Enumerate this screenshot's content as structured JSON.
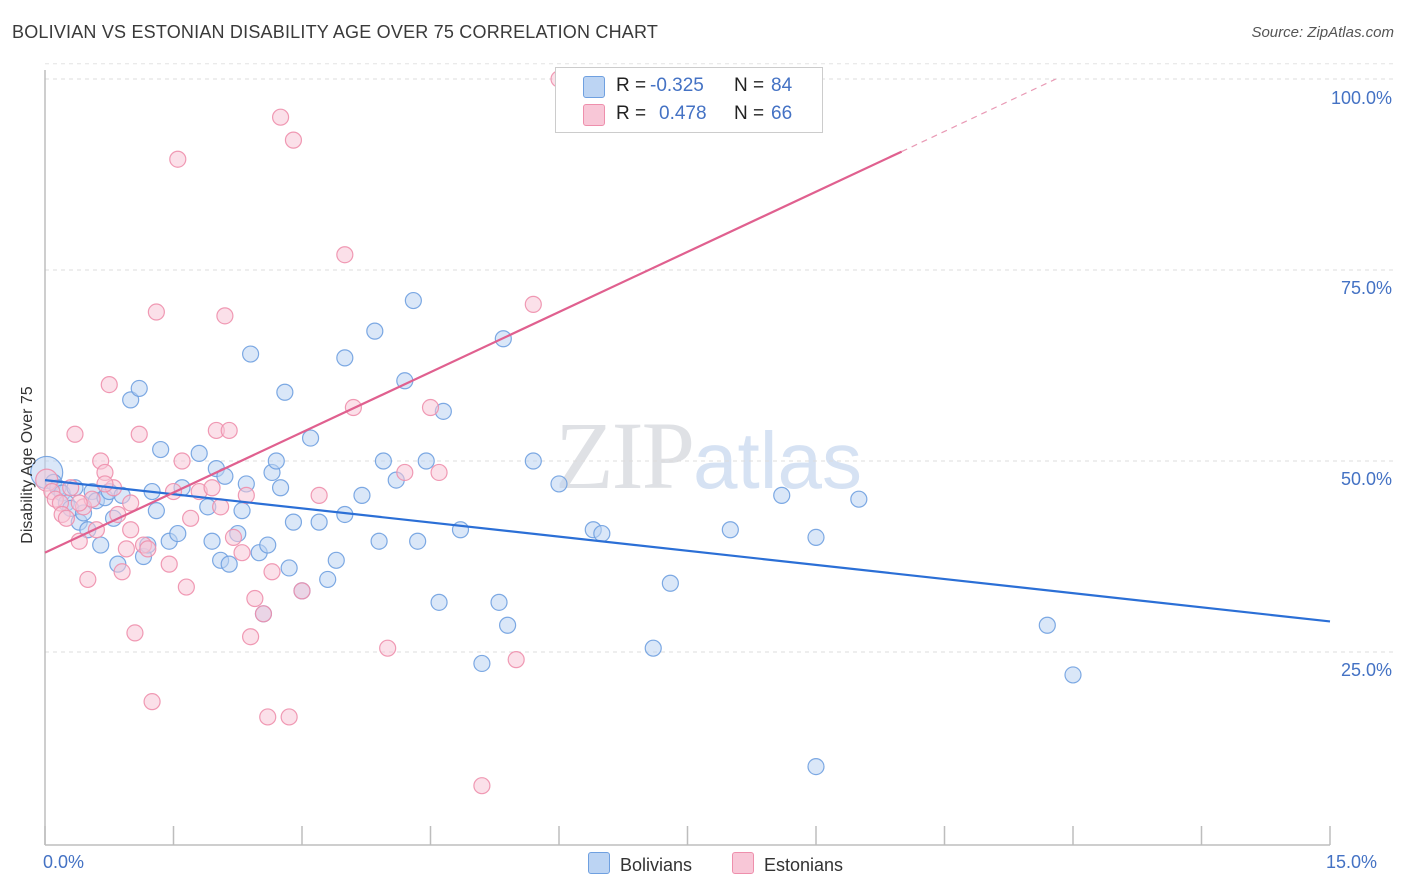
{
  "title": "BOLIVIAN VS ESTONIAN DISABILITY AGE OVER 75 CORRELATION CHART",
  "source": "Source: ZipAtlas.com",
  "watermark": {
    "part1": "ZIP",
    "part2": "atlas"
  },
  "legend": {
    "rows": [
      {
        "r_label": "R =",
        "r_value": "-0.325",
        "n_label": "N =",
        "n_value": "84",
        "color": "#6fa0e0",
        "fill": "#bcd4f3"
      },
      {
        "r_label": "R =",
        "r_value": "0.478",
        "n_label": "N =",
        "n_value": "66",
        "color": "#ee8fac",
        "fill": "#f8c7d7"
      }
    ]
  },
  "bottom_legend": [
    {
      "label": "Bolivians",
      "color": "#bcd4f3",
      "border": "#6fa0e0"
    },
    {
      "label": "Estonians",
      "color": "#f8c7d7",
      "border": "#ee8fac"
    }
  ],
  "chart_data": {
    "type": "scatter",
    "title": "BOLIVIAN VS ESTONIAN DISABILITY AGE OVER 75 CORRELATION CHART",
    "xlabel": "",
    "ylabel": "Disability Age Over 75",
    "xlim": [
      0,
      15
    ],
    "ylim": [
      0,
      102
    ],
    "x_tick_labels": [
      "0.0%",
      "15.0%"
    ],
    "y_ticks": [
      25,
      50,
      75,
      100
    ],
    "y_tick_labels": [
      "25.0%",
      "50.0%",
      "75.0%",
      "100.0%"
    ],
    "grid": true,
    "legend_position": "top-center",
    "series": [
      {
        "name": "Bolivians",
        "color": "#6fa0e0",
        "fill": "#bcd4f3",
        "trend": {
          "x0": 0.0,
          "y0": 47.5,
          "x1": 15.0,
          "y1": 29.0
        },
        "points": [
          [
            0.02,
            48.5
          ],
          [
            0.1,
            47.2
          ],
          [
            0.15,
            46.5
          ],
          [
            0.2,
            45.8
          ],
          [
            0.25,
            44.5
          ],
          [
            0.3,
            43.8
          ],
          [
            0.35,
            46.5
          ],
          [
            0.4,
            42.0
          ],
          [
            0.45,
            43.2
          ],
          [
            0.5,
            41.0
          ],
          [
            0.55,
            46.0
          ],
          [
            0.6,
            44.8
          ],
          [
            0.65,
            39.0
          ],
          [
            0.7,
            45.2
          ],
          [
            0.75,
            46.0
          ],
          [
            0.8,
            42.5
          ],
          [
            0.85,
            36.5
          ],
          [
            0.9,
            45.5
          ],
          [
            1.0,
            58.0
          ],
          [
            1.1,
            59.5
          ],
          [
            1.15,
            37.5
          ],
          [
            1.2,
            39.0
          ],
          [
            1.25,
            46.0
          ],
          [
            1.3,
            43.5
          ],
          [
            1.35,
            51.5
          ],
          [
            1.45,
            39.5
          ],
          [
            1.55,
            40.5
          ],
          [
            1.6,
            46.5
          ],
          [
            1.8,
            51.0
          ],
          [
            1.9,
            44.0
          ],
          [
            1.95,
            39.5
          ],
          [
            2.0,
            49.0
          ],
          [
            2.05,
            37.0
          ],
          [
            2.1,
            48.0
          ],
          [
            2.15,
            36.5
          ],
          [
            2.25,
            40.5
          ],
          [
            2.3,
            43.5
          ],
          [
            2.35,
            47.0
          ],
          [
            2.4,
            64.0
          ],
          [
            2.5,
            38.0
          ],
          [
            2.55,
            30.0
          ],
          [
            2.6,
            39.0
          ],
          [
            2.65,
            48.5
          ],
          [
            2.7,
            50.0
          ],
          [
            2.75,
            46.5
          ],
          [
            2.8,
            59.0
          ],
          [
            2.85,
            36.0
          ],
          [
            2.9,
            42.0
          ],
          [
            3.0,
            33.0
          ],
          [
            3.1,
            53.0
          ],
          [
            3.2,
            42.0
          ],
          [
            3.3,
            34.5
          ],
          [
            3.4,
            37.0
          ],
          [
            3.5,
            43.0
          ],
          [
            3.5,
            63.5
          ],
          [
            3.7,
            45.5
          ],
          [
            3.85,
            67.0
          ],
          [
            3.9,
            39.5
          ],
          [
            3.95,
            50.0
          ],
          [
            4.1,
            47.5
          ],
          [
            4.2,
            60.5
          ],
          [
            4.3,
            71.0
          ],
          [
            4.35,
            39.5
          ],
          [
            4.45,
            50.0
          ],
          [
            4.6,
            31.5
          ],
          [
            4.65,
            56.5
          ],
          [
            4.85,
            41.0
          ],
          [
            5.1,
            23.5
          ],
          [
            5.35,
            66.0
          ],
          [
            5.3,
            31.5
          ],
          [
            5.4,
            28.5
          ],
          [
            5.7,
            50.0
          ],
          [
            6.0,
            47.0
          ],
          [
            6.4,
            41.0
          ],
          [
            6.5,
            40.5
          ],
          [
            7.1,
            25.5
          ],
          [
            7.3,
            34.0
          ],
          [
            8.0,
            41.0
          ],
          [
            8.6,
            45.5
          ],
          [
            9.0,
            40.0
          ],
          [
            9.5,
            45.0
          ],
          [
            9.0,
            10.0
          ],
          [
            11.7,
            28.5
          ],
          [
            12.0,
            22.0
          ]
        ]
      },
      {
        "name": "Estonians",
        "color": "#ee8fac",
        "fill": "#f8c7d7",
        "trend": {
          "x0": 0.0,
          "y0": 38.0,
          "x1": 10.0,
          "y1": 90.5,
          "dash_x1": 11.8,
          "dash_y1": 100.0
        },
        "points": [
          [
            0.02,
            47.5
          ],
          [
            0.08,
            46.0
          ],
          [
            0.12,
            45.0
          ],
          [
            0.18,
            44.5
          ],
          [
            0.2,
            43.0
          ],
          [
            0.3,
            46.5
          ],
          [
            0.35,
            53.5
          ],
          [
            0.4,
            39.5
          ],
          [
            0.45,
            44.0
          ],
          [
            0.5,
            34.5
          ],
          [
            0.55,
            45.0
          ],
          [
            0.6,
            41.0
          ],
          [
            0.65,
            50.0
          ],
          [
            0.7,
            48.5
          ],
          [
            0.75,
            60.0
          ],
          [
            0.8,
            46.5
          ],
          [
            0.85,
            43.0
          ],
          [
            0.9,
            35.5
          ],
          [
            0.95,
            38.5
          ],
          [
            1.0,
            41.0
          ],
          [
            1.05,
            27.5
          ],
          [
            1.1,
            53.5
          ],
          [
            1.15,
            39.0
          ],
          [
            1.2,
            38.5
          ],
          [
            1.25,
            18.5
          ],
          [
            1.3,
            69.5
          ],
          [
            1.45,
            36.5
          ],
          [
            1.5,
            46.0
          ],
          [
            1.55,
            89.5
          ],
          [
            1.6,
            50.0
          ],
          [
            1.65,
            33.5
          ],
          [
            1.7,
            42.5
          ],
          [
            1.8,
            46.0
          ],
          [
            1.95,
            46.5
          ],
          [
            2.0,
            54.0
          ],
          [
            2.05,
            44.0
          ],
          [
            2.1,
            69.0
          ],
          [
            2.15,
            54.0
          ],
          [
            2.2,
            40.0
          ],
          [
            2.35,
            45.5
          ],
          [
            2.4,
            27.0
          ],
          [
            2.45,
            32.0
          ],
          [
            2.55,
            30.0
          ],
          [
            2.6,
            16.5
          ],
          [
            2.65,
            35.5
          ],
          [
            2.75,
            95.0
          ],
          [
            2.85,
            16.5
          ],
          [
            2.9,
            92.0
          ],
          [
            3.0,
            33.0
          ],
          [
            3.2,
            45.5
          ],
          [
            3.5,
            77.0
          ],
          [
            3.6,
            57.0
          ],
          [
            4.0,
            25.5
          ],
          [
            4.2,
            48.5
          ],
          [
            4.5,
            57.0
          ],
          [
            4.6,
            48.5
          ],
          [
            5.1,
            7.5
          ],
          [
            5.5,
            24.0
          ],
          [
            5.7,
            70.5
          ],
          [
            6.0,
            100.0
          ],
          [
            6.3,
            100.0
          ],
          [
            0.25,
            42.5
          ],
          [
            0.4,
            44.5
          ],
          [
            0.7,
            47.0
          ],
          [
            1.0,
            44.5
          ],
          [
            2.3,
            38.0
          ]
        ]
      }
    ]
  }
}
